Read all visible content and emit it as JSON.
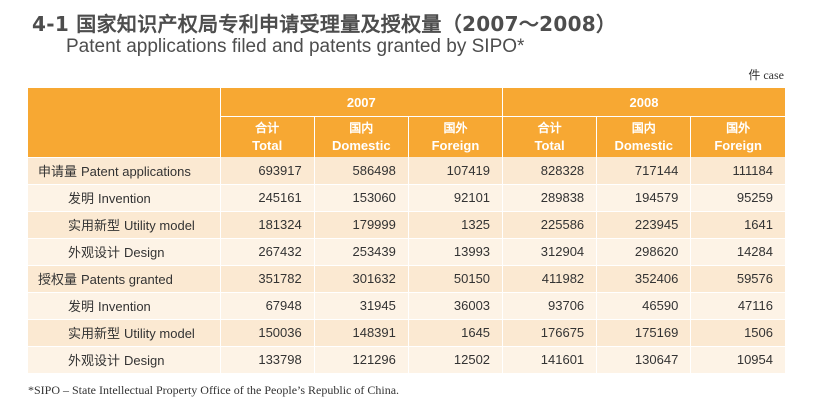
{
  "title_cn": "4-1 国家知识产权局专利申请受理量及授权量（2007～2008）",
  "title_en": "Patent applications filed and patents granted by SIPO*",
  "unit": "件 case",
  "colors": {
    "header_bg": "#f7a833",
    "row_dark": "#fbe9d2",
    "row_light": "#fdf3e6"
  },
  "years": [
    "2007",
    "2008"
  ],
  "columns": [
    {
      "cn": "合计",
      "en": "Total"
    },
    {
      "cn": "国内",
      "en": "Domestic"
    },
    {
      "cn": "国外",
      "en": "Foreign"
    },
    {
      "cn": "合计",
      "en": "Total"
    },
    {
      "cn": "国内",
      "en": "Domestic"
    },
    {
      "cn": "国外",
      "en": "Foreign"
    }
  ],
  "rows": [
    {
      "cn": "申请量",
      "en": "Patent applications",
      "level": 0,
      "values": [
        "693917",
        "586498",
        "107419",
        "828328",
        "717144",
        "111184"
      ]
    },
    {
      "cn": "发明",
      "en": "Invention",
      "level": 1,
      "values": [
        "245161",
        "153060",
        "92101",
        "289838",
        "194579",
        "95259"
      ]
    },
    {
      "cn": "实用新型",
      "en": "Utility model",
      "level": 1,
      "values": [
        "181324",
        "179999",
        "1325",
        "225586",
        "223945",
        "1641"
      ]
    },
    {
      "cn": "外观设计",
      "en": "Design",
      "level": 1,
      "values": [
        "267432",
        "253439",
        "13993",
        "312904",
        "298620",
        "14284"
      ]
    },
    {
      "cn": "授权量",
      "en": "Patents granted",
      "level": 0,
      "values": [
        "351782",
        "301632",
        "50150",
        "411982",
        "352406",
        "59576"
      ]
    },
    {
      "cn": "发明",
      "en": "Invention",
      "level": 1,
      "values": [
        "67948",
        "31945",
        "36003",
        "93706",
        "46590",
        "47116"
      ]
    },
    {
      "cn": "实用新型",
      "en": "Utility model",
      "level": 1,
      "values": [
        "150036",
        "148391",
        "1645",
        "176675",
        "175169",
        "1506"
      ]
    },
    {
      "cn": "外观设计",
      "en": "Design",
      "level": 1,
      "values": [
        "133798",
        "121296",
        "12502",
        "141601",
        "130647",
        "10954"
      ]
    }
  ],
  "footnote": "*SIPO – State Intellectual Property Office of the People’s Republic of China."
}
